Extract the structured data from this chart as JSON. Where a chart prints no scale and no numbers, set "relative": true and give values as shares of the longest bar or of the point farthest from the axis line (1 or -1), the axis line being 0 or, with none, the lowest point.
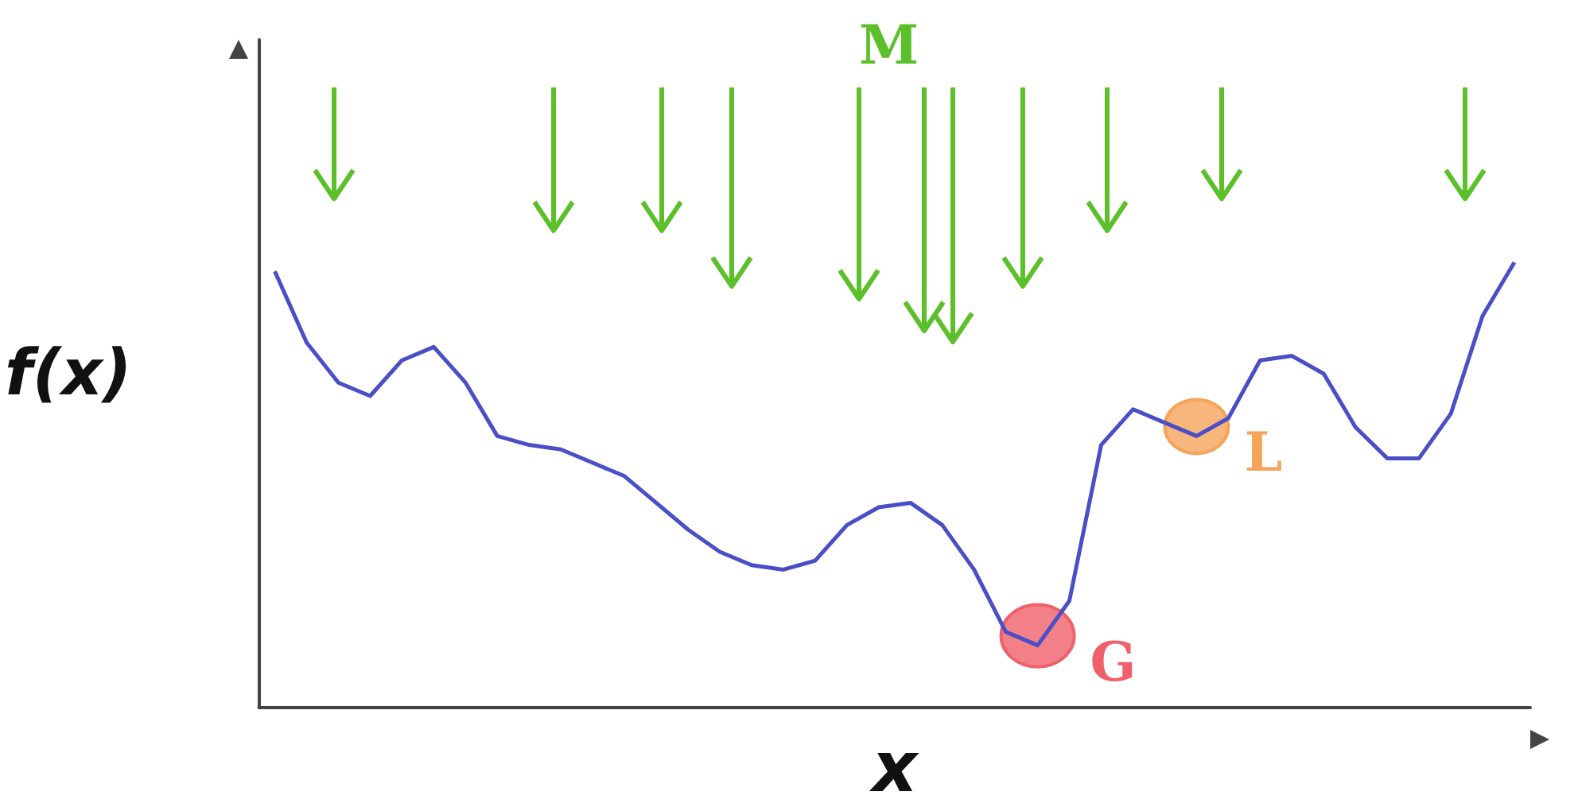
{
  "chart_data": {
    "type": "line",
    "relative": true,
    "xlabel": "x",
    "ylabel": "f(x)",
    "marker": "none",
    "annotations": [
      "M",
      "G",
      "L"
    ],
    "categories": [
      null,
      null,
      null,
      null,
      null,
      null,
      null,
      null,
      null,
      null,
      null,
      null,
      null,
      null,
      null,
      null,
      null,
      null,
      null,
      null,
      null,
      null,
      null,
      null,
      null,
      null,
      null,
      null,
      null,
      null,
      null,
      null,
      null,
      null,
      null,
      null,
      null,
      null,
      null,
      null
    ],
    "series": [
      {
        "color": "#4a4fc8",
        "values": [
          0.98,
          0.82,
          0.73,
          0.7,
          0.78,
          0.81,
          0.73,
          0.61,
          0.59,
          0.58,
          0.55,
          0.52,
          0.46,
          0.4,
          0.35,
          0.32,
          0.31,
          0.33,
          0.41,
          0.45,
          0.46,
          0.41,
          0.31,
          0.17,
          0.14,
          0.24,
          0.59,
          0.67,
          0.64,
          0.61,
          0.65,
          0.78,
          0.79,
          0.75,
          0.63,
          0.56,
          0.56,
          0.66,
          0.88,
          1
        ]
      }
    ]
  }
}
